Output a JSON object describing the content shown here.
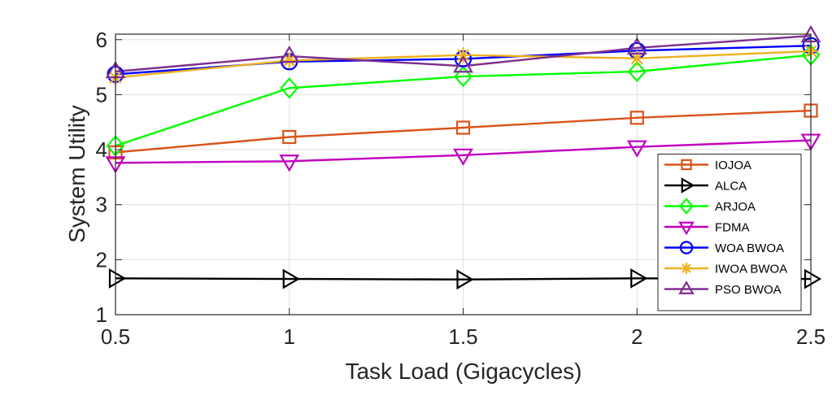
{
  "chart_data": {
    "type": "line",
    "xlabel": "Task Load (Gigacycles)",
    "ylabel": "System Utility",
    "xlim": [
      0.5,
      2.5
    ],
    "ylim": [
      1,
      6.1
    ],
    "x": [
      0.5,
      1,
      1.5,
      2,
      2.5
    ],
    "xticks": [
      "0.5",
      "1",
      "1.5",
      "2",
      "2.5"
    ],
    "yticks": [
      "1",
      "2",
      "3",
      "4",
      "5",
      "6"
    ],
    "grid": true,
    "legend_position": "bottom-right",
    "series": [
      {
        "name": "IOJOA",
        "color": "#D95319",
        "marker": "square",
        "values": [
          3.95,
          4.23,
          4.4,
          4.58,
          4.71
        ]
      },
      {
        "name": "ALCA",
        "color": "#000000",
        "marker": "triangle-right",
        "values": [
          1.66,
          1.65,
          1.64,
          1.66,
          1.65
        ]
      },
      {
        "name": "ARJOA",
        "color": "#00FF00",
        "marker": "diamond",
        "values": [
          4.07,
          5.12,
          5.33,
          5.42,
          5.72
        ]
      },
      {
        "name": "FDMA",
        "color": "#C000C0",
        "marker": "triangle-down",
        "values": [
          3.76,
          3.79,
          3.9,
          4.05,
          4.17
        ]
      },
      {
        "name": "WOA BWOA",
        "color": "#0000FF",
        "marker": "circle",
        "values": [
          5.37,
          5.6,
          5.65,
          5.8,
          5.89
        ]
      },
      {
        "name": "IWOA BWOA",
        "color": "#EDB120",
        "marker": "asterisk",
        "values": [
          5.31,
          5.62,
          5.72,
          5.66,
          5.79
        ]
      },
      {
        "name": "PSO BWOA",
        "color": "#7E2F8E",
        "marker": "triangle-up",
        "values": [
          5.42,
          5.7,
          5.52,
          5.85,
          6.07
        ]
      }
    ]
  }
}
